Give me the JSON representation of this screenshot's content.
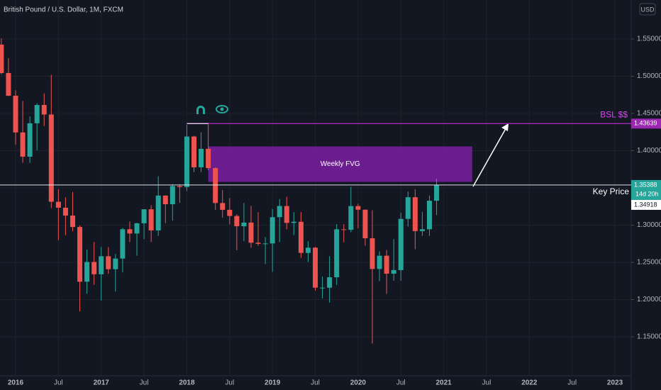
{
  "chart_data": {
    "type": "candlestick",
    "title": "British Pound / U.S. Dollar, 1M, FXCM",
    "currency": "USD",
    "x": [
      "2015-11",
      "2015-12",
      "2016-01",
      "2016-02",
      "2016-03",
      "2016-04",
      "2016-05",
      "2016-06",
      "2016-07",
      "2016-08",
      "2016-09",
      "2016-10",
      "2016-11",
      "2016-12",
      "2017-01",
      "2017-02",
      "2017-03",
      "2017-04",
      "2017-05",
      "2017-06",
      "2017-07",
      "2017-08",
      "2017-09",
      "2017-10",
      "2017-11",
      "2017-12",
      "2018-01",
      "2018-02",
      "2018-03",
      "2018-04",
      "2018-05",
      "2018-06",
      "2018-07",
      "2018-08",
      "2018-09",
      "2018-10",
      "2018-11",
      "2018-12",
      "2019-01",
      "2019-02",
      "2019-03",
      "2019-04",
      "2019-05",
      "2019-06",
      "2019-07",
      "2019-08",
      "2019-09",
      "2019-10",
      "2019-11",
      "2019-12",
      "2020-01",
      "2020-02",
      "2020-03",
      "2020-04",
      "2020-05",
      "2020-06",
      "2020-07",
      "2020-08",
      "2020-09",
      "2020-10",
      "2020-11",
      "2020-12"
    ],
    "open": [
      1.5425,
      1.5043,
      1.4738,
      1.4245,
      1.392,
      1.4368,
      1.4614,
      1.4486,
      1.3314,
      1.3234,
      1.3128,
      1.2975,
      1.224,
      1.2505,
      1.234,
      1.2582,
      1.2408,
      1.2551,
      1.2945,
      1.2888,
      1.3025,
      1.3213,
      1.2929,
      1.3397,
      1.3281,
      1.3525,
      1.3512,
      1.419,
      1.3777,
      1.4025,
      1.3766,
      1.3297,
      1.3206,
      1.3123,
      1.2985,
      1.3034,
      1.2764,
      1.2749,
      1.2754,
      1.3107,
      1.3257,
      1.303,
      1.3045,
      1.2627,
      1.2697,
      1.216,
      1.216,
      1.23,
      1.2944,
      1.2937,
      1.3256,
      1.3207,
      1.2824,
      1.2411,
      1.2589,
      1.2348,
      1.2396,
      1.3084,
      1.3375,
      1.292,
      1.2945,
      1.3328
    ],
    "high": [
      1.5508,
      1.5242,
      1.4812,
      1.4668,
      1.4459,
      1.4637,
      1.477,
      1.5018,
      1.3481,
      1.3374,
      1.3445,
      1.2995,
      1.2674,
      1.2775,
      1.2706,
      1.2706,
      1.2615,
      1.2965,
      1.3048,
      1.303,
      1.3213,
      1.3268,
      1.3657,
      1.34,
      1.3549,
      1.3549,
      1.4346,
      1.42,
      1.4245,
      1.4377,
      1.3778,
      1.3473,
      1.3363,
      1.3146,
      1.3298,
      1.3259,
      1.3175,
      1.284,
      1.3217,
      1.335,
      1.338,
      1.3176,
      1.3176,
      1.2783,
      1.271,
      1.231,
      1.2583,
      1.3013,
      1.3013,
      1.3515,
      1.3285,
      1.3212,
      1.32,
      1.2648,
      1.2667,
      1.2813,
      1.317,
      1.3452,
      1.3483,
      1.3177,
      1.3398,
      1.3625
    ],
    "low": [
      1.5026,
      1.4735,
      1.408,
      1.3836,
      1.3836,
      1.4006,
      1.4331,
      1.3229,
      1.2798,
      1.2865,
      1.2915,
      1.1841,
      1.2079,
      1.22,
      1.1987,
      1.2345,
      1.2109,
      1.2365,
      1.2773,
      1.2589,
      1.2812,
      1.2774,
      1.2855,
      1.3028,
      1.306,
      1.33,
      1.3457,
      1.3711,
      1.3711,
      1.3737,
      1.3205,
      1.31,
      1.301,
      1.2662,
      1.2785,
      1.2696,
      1.2723,
      1.2477,
      1.2373,
      1.2773,
      1.2945,
      1.2866,
      1.256,
      1.2506,
      1.2119,
      1.2015,
      1.1959,
      1.2195,
      1.2769,
      1.2905,
      1.2955,
      1.2725,
      1.1409,
      1.2248,
      1.2076,
      1.2252,
      1.2252,
      1.2981,
      1.2676,
      1.2855,
      1.2855,
      1.3135
    ],
    "close": [
      1.5043,
      1.4738,
      1.4245,
      1.392,
      1.4368,
      1.4614,
      1.4486,
      1.3314,
      1.3234,
      1.3128,
      1.2975,
      1.224,
      1.2505,
      1.234,
      1.2582,
      1.2408,
      1.2551,
      1.2945,
      1.2888,
      1.3025,
      1.3213,
      1.2929,
      1.3397,
      1.3281,
      1.3525,
      1.3512,
      1.419,
      1.3777,
      1.4025,
      1.3766,
      1.3297,
      1.3206,
      1.3123,
      1.2985,
      1.3034,
      1.2764,
      1.2749,
      1.2754,
      1.3107,
      1.3257,
      1.303,
      1.3045,
      1.2627,
      1.2697,
      1.216,
      1.216,
      1.23,
      1.2944,
      1.2937,
      1.3256,
      1.3207,
      1.2824,
      1.2411,
      1.2589,
      1.2348,
      1.2396,
      1.3084,
      1.3375,
      1.292,
      1.2945,
      1.3328,
      1.3539
    ],
    "up_color": "#26a69a",
    "down_color": "#ef5350",
    "ylim": [
      1.0976,
      1.6024
    ],
    "yticks": [
      {
        "value": 1.15,
        "label": "1.15000"
      },
      {
        "value": 1.2,
        "label": "1.20000"
      },
      {
        "value": 1.25,
        "label": "1.25000"
      },
      {
        "value": 1.3,
        "label": "1.30000"
      },
      {
        "value": 1.35,
        "label": "1.35000"
      },
      {
        "value": 1.4,
        "label": "1.40000"
      },
      {
        "value": 1.45,
        "label": "1.45000"
      },
      {
        "value": 1.5,
        "label": "1.50000"
      },
      {
        "value": 1.55,
        "label": "1.55000"
      }
    ],
    "xticks": [
      {
        "value": "2016-01",
        "label": "2016"
      },
      {
        "value": "2016-07",
        "label": "Jul"
      },
      {
        "value": "2017-01",
        "label": "2017"
      },
      {
        "value": "2017-07",
        "label": "Jul"
      },
      {
        "value": "2018-01",
        "label": "2018"
      },
      {
        "value": "2018-07",
        "label": "Jul"
      },
      {
        "value": "2019-01",
        "label": "2019"
      },
      {
        "value": "2019-07",
        "label": "Jul"
      },
      {
        "value": "2020-01",
        "label": "2020"
      },
      {
        "value": "2020-07",
        "label": "Jul"
      },
      {
        "value": "2021-01",
        "label": "2021"
      },
      {
        "value": "2021-07",
        "label": "Jul"
      },
      {
        "value": "2022-01",
        "label": "2022"
      },
      {
        "value": "2022-07",
        "label": "Jul"
      },
      {
        "value": "2023-01",
        "label": "2023"
      }
    ],
    "grid": true,
    "bsl": {
      "label": "BSL $$",
      "value": 1.43639,
      "start": "2018-01",
      "color": "#9c27b0"
    },
    "fvg": {
      "label": "Weekly FVG",
      "start": "2018-04",
      "end": "2021-05",
      "top": 1.4057,
      "bottom": 1.3581,
      "color": "#7b1fa2"
    },
    "key_price": {
      "label": "Key Price",
      "value": 1.35388,
      "countdown": "14d 20h"
    },
    "prev_close": 1.34918
  }
}
